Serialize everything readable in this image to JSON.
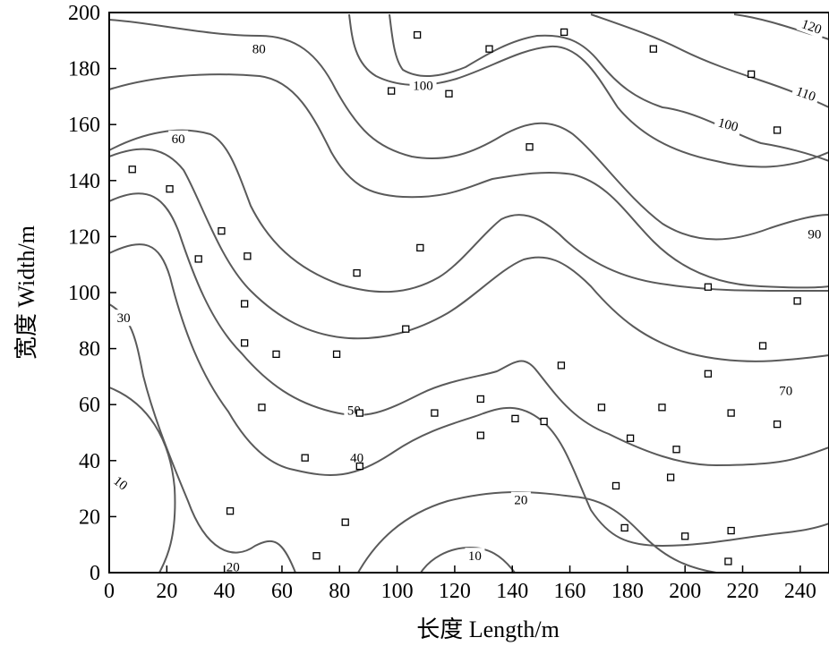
{
  "chart_data": {
    "type": "contour",
    "xlabel": "长度 Length/m",
    "ylabel": "宽度 Width/m",
    "xlim": [
      0,
      250
    ],
    "ylim": [
      0,
      200
    ],
    "xticks": [
      "0",
      "20",
      "40",
      "60",
      "80",
      "100",
      "120",
      "140",
      "160",
      "180",
      "200",
      "220",
      "240"
    ],
    "yticks": [
      "0",
      "20",
      "40",
      "60",
      "80",
      "100",
      "120",
      "140",
      "160",
      "180",
      "200"
    ],
    "levels": [
      10,
      20,
      30,
      40,
      50,
      60,
      70,
      80,
      90,
      100,
      110,
      120
    ],
    "contour_labels": [
      {
        "text": "10",
        "x": 4,
        "y": 32,
        "rot": 38
      },
      {
        "text": "20",
        "x": 43,
        "y": 2,
        "rot": 0
      },
      {
        "text": "10",
        "x": 127,
        "y": 6,
        "rot": 0
      },
      {
        "text": "20",
        "x": 143,
        "y": 26,
        "rot": 0
      },
      {
        "text": "30",
        "x": 5,
        "y": 91,
        "rot": 0
      },
      {
        "text": "40",
        "x": 86,
        "y": 41,
        "rot": 0
      },
      {
        "text": "50",
        "x": 85,
        "y": 58,
        "rot": 0
      },
      {
        "text": "60",
        "x": 24,
        "y": 155,
        "rot": 0
      },
      {
        "text": "70",
        "x": 235,
        "y": 65,
        "rot": 0
      },
      {
        "text": "80",
        "x": 52,
        "y": 187,
        "rot": 0
      },
      {
        "text": "90",
        "x": 245,
        "y": 121,
        "rot": 0
      },
      {
        "text": "100",
        "x": 109,
        "y": 174,
        "rot": 0
      },
      {
        "text": "100",
        "x": 215,
        "y": 160,
        "rot": 15
      },
      {
        "text": "110",
        "x": 242,
        "y": 171,
        "rot": 20
      },
      {
        "text": "120",
        "x": 244,
        "y": 195,
        "rot": 20
      }
    ],
    "sample_points": [
      [
        8,
        144
      ],
      [
        21,
        137
      ],
      [
        31,
        112
      ],
      [
        39,
        122
      ],
      [
        48,
        113
      ],
      [
        47,
        96
      ],
      [
        47,
        82
      ],
      [
        58,
        78
      ],
      [
        53,
        59
      ],
      [
        68,
        41
      ],
      [
        42,
        22
      ],
      [
        72,
        6
      ],
      [
        82,
        18
      ],
      [
        86,
        107
      ],
      [
        79,
        78
      ],
      [
        87,
        57
      ],
      [
        87,
        38
      ],
      [
        103,
        87
      ],
      [
        108,
        116
      ],
      [
        98,
        172
      ],
      [
        107,
        192
      ],
      [
        118,
        171
      ],
      [
        132,
        187
      ],
      [
        113,
        57
      ],
      [
        129,
        62
      ],
      [
        129,
        49
      ],
      [
        141,
        55
      ],
      [
        146,
        152
      ],
      [
        151,
        54
      ],
      [
        157,
        74
      ],
      [
        158,
        193
      ],
      [
        171,
        59
      ],
      [
        176,
        31
      ],
      [
        179,
        16
      ],
      [
        181,
        48
      ],
      [
        189,
        187
      ],
      [
        192,
        59
      ],
      [
        195,
        34
      ],
      [
        197,
        44
      ],
      [
        200,
        13
      ],
      [
        208,
        102
      ],
      [
        208,
        71
      ],
      [
        216,
        57
      ],
      [
        216,
        15
      ],
      [
        215,
        4
      ],
      [
        223,
        178
      ],
      [
        227,
        81
      ],
      [
        232,
        53
      ],
      [
        232,
        158
      ],
      [
        239,
        97
      ]
    ]
  }
}
